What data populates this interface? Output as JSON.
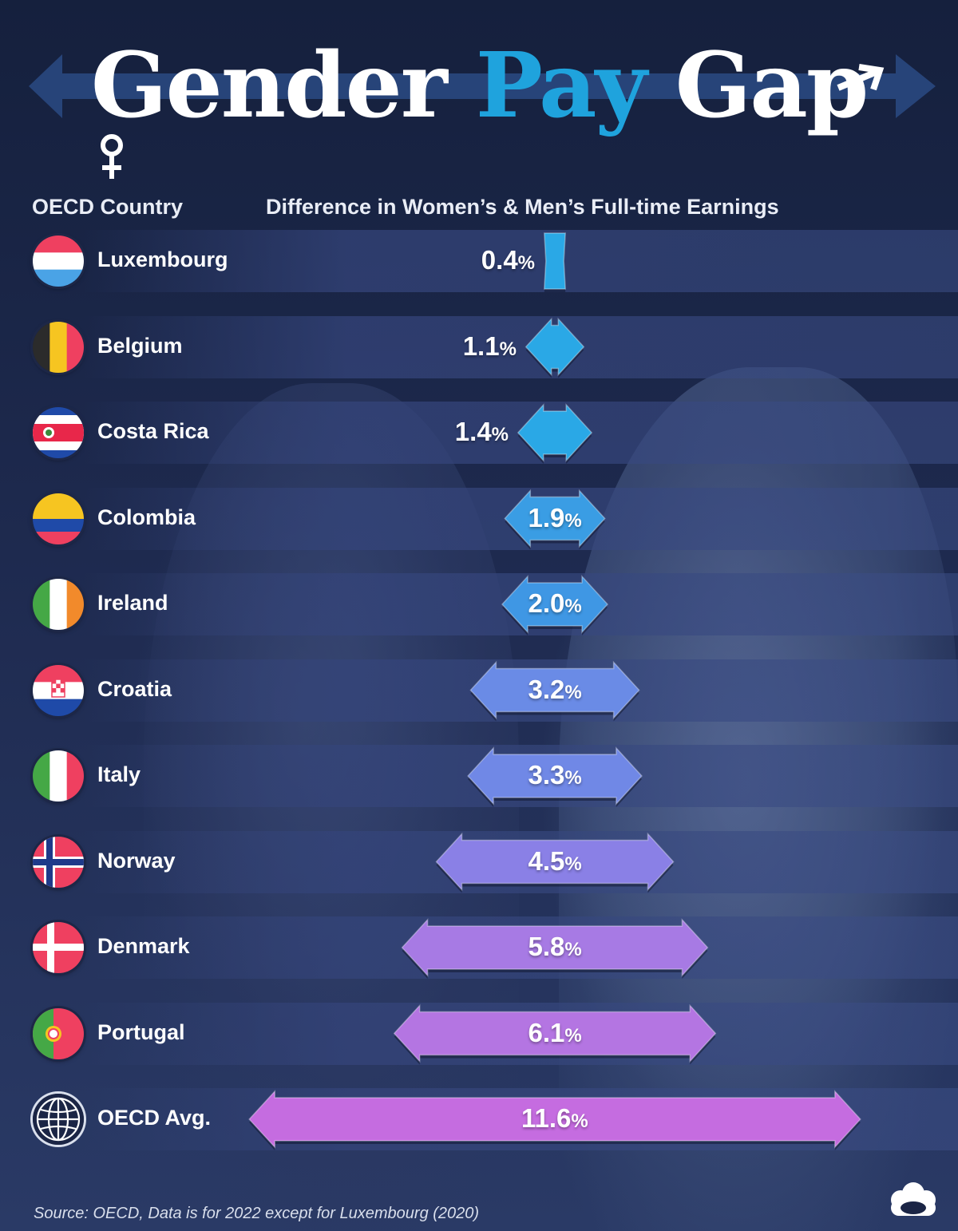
{
  "title": {
    "part1": "Gender",
    "part2": "Pay",
    "part3": "Gap"
  },
  "headers": {
    "country": "OECD Country",
    "difference": "Difference in Women’s & Men’s Full-time Earnings"
  },
  "chart_data": {
    "type": "bar",
    "title": "Gender Pay Gap",
    "xlabel": "Difference in Women’s & Men’s Full-time Earnings",
    "ylabel": "OECD Country",
    "unit": "%",
    "categories": [
      "Luxembourg",
      "Belgium",
      "Costa Rica",
      "Colombia",
      "Ireland",
      "Croatia",
      "Italy",
      "Norway",
      "Denmark",
      "Portugal",
      "OECD Avg."
    ],
    "values": [
      0.4,
      1.1,
      1.4,
      1.9,
      2.0,
      3.2,
      3.3,
      4.5,
      5.8,
      6.1,
      11.6
    ],
    "labels": [
      "0.4",
      "1.1",
      "1.4",
      "1.9",
      "2.0",
      "3.2",
      "3.3",
      "4.5",
      "5.8",
      "6.1",
      "11.6"
    ],
    "colors": [
      "#2aa8e6",
      "#2aa8e6",
      "#2aa8e6",
      "#3a9de4",
      "#3f97e4",
      "#6a8be6",
      "#7088e6",
      "#8a80e6",
      "#a77ae4",
      "#b475e2",
      "#c56ce0"
    ],
    "flag_icons": [
      "luxembourg-flag-icon",
      "belgium-flag-icon",
      "costa-rica-flag-icon",
      "colombia-flag-icon",
      "ireland-flag-icon",
      "croatia-flag-icon",
      "italy-flag-icon",
      "norway-flag-icon",
      "denmark-flag-icon",
      "portugal-flag-icon",
      "globe-icon"
    ]
  },
  "source": "Source: OECD, Data is for 2022 except for Luxembourg (2020)"
}
